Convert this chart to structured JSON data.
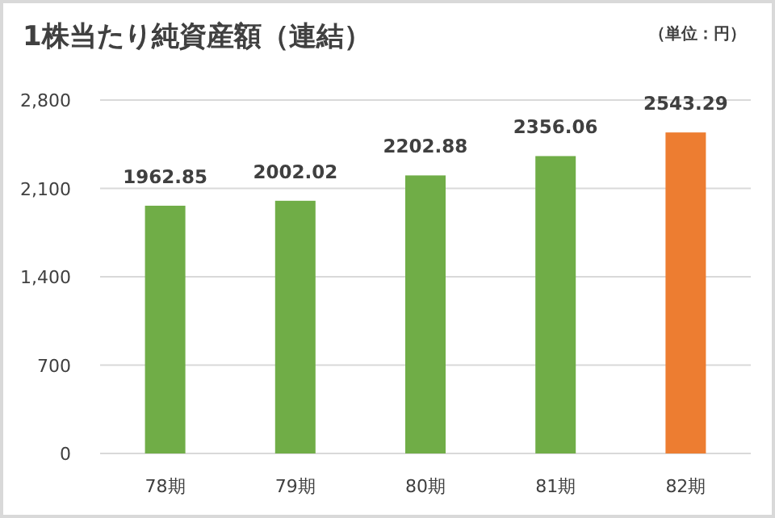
{
  "chart_data": {
    "type": "bar",
    "title": "1株当たり純資産額（連結）",
    "annotations": [
      "（単位：円）"
    ],
    "categories": [
      "78期",
      "79期",
      "80期",
      "81期",
      "82期"
    ],
    "values": [
      1962.85,
      2002.02,
      2202.88,
      2356.06,
      2543.29
    ],
    "colors": [
      "#70ad47",
      "#70ad47",
      "#70ad47",
      "#70ad47",
      "#ed7d31"
    ],
    "ylim": [
      0,
      2800
    ],
    "yticks": [
      {
        "value": 0,
        "label": "0"
      },
      {
        "value": 700,
        "label": "700"
      },
      {
        "value": 1400,
        "label": "1,400"
      },
      {
        "value": 2100,
        "label": "2,100"
      },
      {
        "value": 2800,
        "label": "2,800"
      }
    ],
    "grid": "y",
    "data_labels": true
  }
}
